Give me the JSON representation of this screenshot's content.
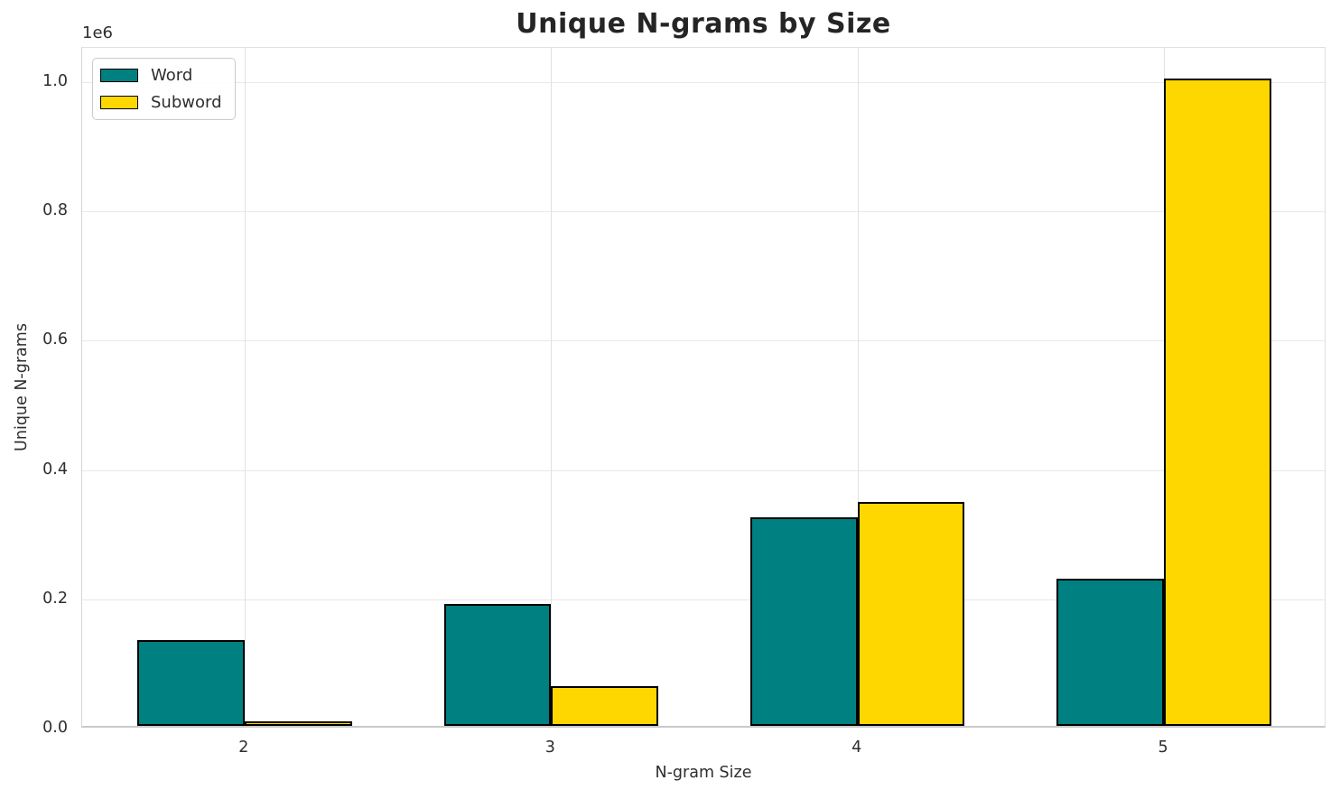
{
  "title": "Unique N-grams by Size",
  "axes": {
    "x_label": "N-gram Size",
    "y_label": "Unique N-grams",
    "offset_text": "1e6"
  },
  "chart_data": {
    "type": "bar",
    "title": "Unique N-grams by Size",
    "xlabel": "N-gram Size",
    "ylabel": "Unique N-grams",
    "categories": [
      "2",
      "3",
      "4",
      "5"
    ],
    "series": [
      {
        "name": "Word",
        "color": "#008080",
        "values": [
          133000,
          188000,
          322000,
          228000
        ]
      },
      {
        "name": "Subword",
        "color": "#FFD700",
        "values": [
          7500,
          62000,
          346000,
          1002000
        ]
      }
    ],
    "bar_edge_color": "#000000",
    "ylim": [
      0,
      1053000
    ],
    "yticks": {
      "values": [
        0,
        200000,
        400000,
        600000,
        800000,
        1000000
      ],
      "labels": [
        "0.0",
        "0.2",
        "0.4",
        "0.6",
        "0.8",
        "1.0"
      ]
    },
    "y_multiplier_text": "1e6",
    "grid": true,
    "legend_position": "upper left"
  }
}
